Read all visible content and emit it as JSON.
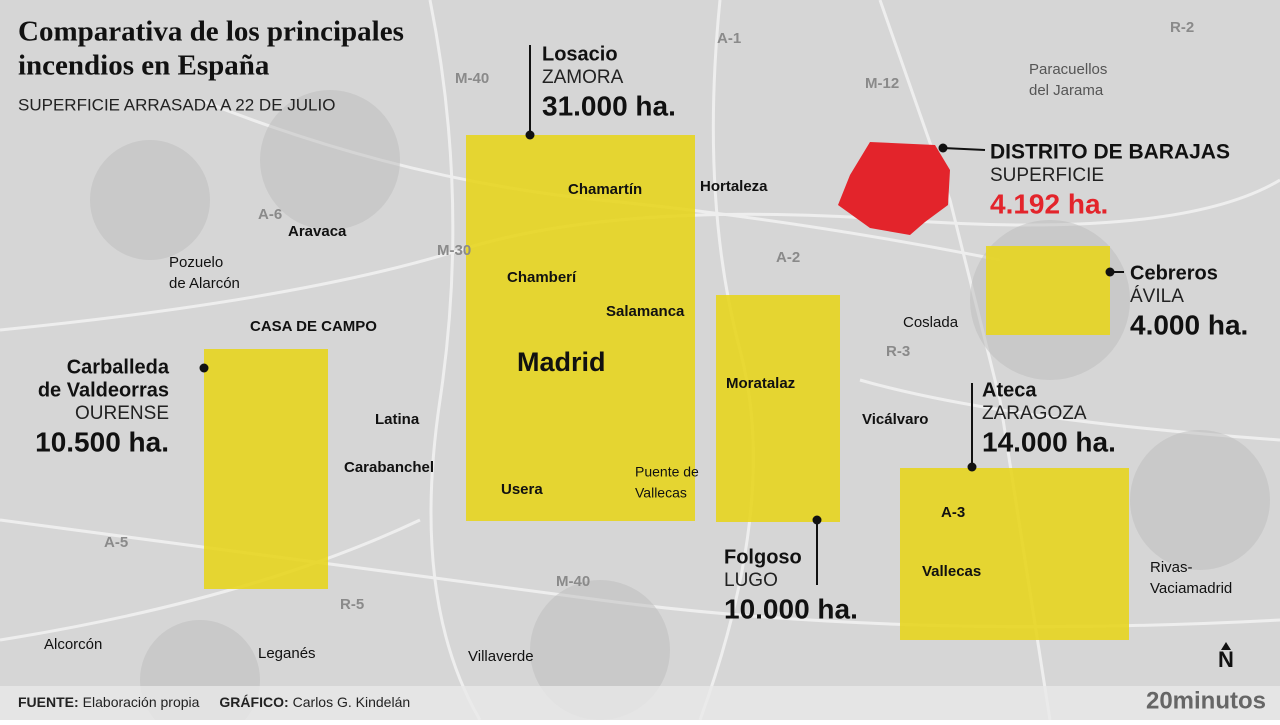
{
  "header": {
    "title": [
      "Comparativa de los principales",
      "incendios en España"
    ],
    "subtitle": "SUPERFICIE ARRASADA A 22 DE JULIO"
  },
  "fires": [
    {
      "name": [
        "Losacio"
      ],
      "province": "ZAMORA",
      "area": "31.000 ha."
    },
    {
      "name": [
        "Carballeda",
        "de Valdeorras"
      ],
      "province": "OURENSE",
      "area": "10.500 ha."
    },
    {
      "name": [
        "Folgoso"
      ],
      "province": "LUGO",
      "area": "10.000 ha."
    },
    {
      "name": [
        "Cebreros"
      ],
      "province": "ÁVILA",
      "area": "4.000 ha."
    },
    {
      "name": [
        "Ateca"
      ],
      "province": "ZARAGOZA",
      "area": "14.000 ha."
    },
    {
      "name": [
        "DISTRITO DE BARAJAS"
      ],
      "province": "SUPERFICIE",
      "area": "4.192 ha."
    }
  ],
  "places": [
    [
      "Chamartín"
    ],
    [
      "Hortaleza"
    ],
    [
      "Aravaca"
    ],
    [
      "Pozuelo",
      "de Alarcón"
    ],
    [
      "Chamberí"
    ],
    [
      "Salamanca"
    ],
    [
      "Madrid"
    ],
    [
      "CASA DE CAMPO"
    ],
    [
      "Latina"
    ],
    [
      "Carabanchel"
    ],
    [
      "Usera"
    ],
    [
      "Puente de",
      "Vallecas"
    ],
    [
      "Moratalaz"
    ],
    [
      "Vicálvaro"
    ],
    [
      "Coslada"
    ],
    [
      "A-3"
    ],
    [
      "Vallecas"
    ],
    [
      "Rivas-",
      "Vaciamadrid"
    ],
    [
      "Paracuellos",
      "del Jarama"
    ],
    [
      "Alcorcón"
    ],
    [
      "Leganés"
    ],
    [
      "Villaverde"
    ]
  ],
  "roads": [
    "A-1",
    "R-2",
    "M-40",
    "M-12",
    "A-6",
    "M-30",
    "A-2",
    "R-3",
    "A-5",
    "M-40",
    "R-5"
  ],
  "footer": {
    "source_label": "FUENTE:",
    "source": "Elaboración propia",
    "graphic_label": "GRÁFICO:",
    "graphic": "Carlos G. Kindelán",
    "brand": "20minutos",
    "north": "N"
  }
}
